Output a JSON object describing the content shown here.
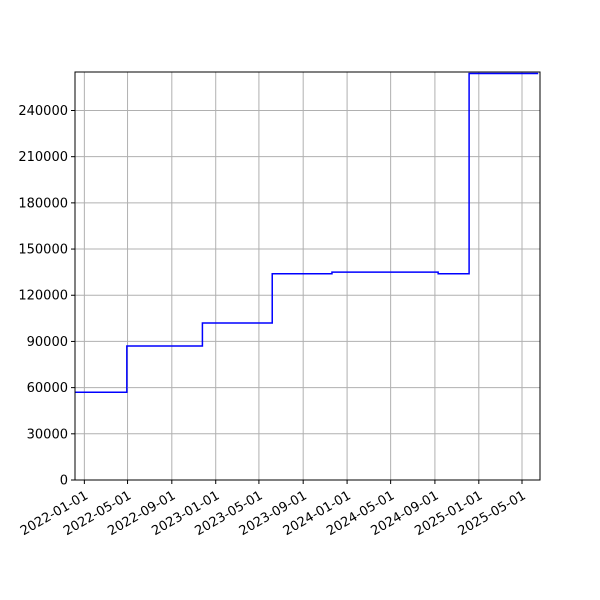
{
  "chart_data": {
    "type": "line",
    "title": "",
    "xlabel": "",
    "ylabel": "",
    "x_axis": "date",
    "xlim": [
      "2021-12-06",
      "2025-06-20"
    ],
    "ylim": [
      0,
      265000
    ],
    "grid": true,
    "legend": "none",
    "line_style": "steps",
    "x_ticks": [
      "2022-01-01",
      "2022-05-01",
      "2022-09-01",
      "2023-01-01",
      "2023-05-01",
      "2023-09-01",
      "2024-01-01",
      "2024-05-01",
      "2024-09-01",
      "2025-01-01",
      "2025-05-01"
    ],
    "y_ticks": [
      0,
      30000,
      60000,
      90000,
      120000,
      150000,
      180000,
      210000,
      240000
    ],
    "y_tick_labels": [
      "0",
      "30000",
      "60000",
      "90000",
      "120000",
      "150000",
      "180000",
      "210000",
      "240000"
    ],
    "series": [
      {
        "color": "#0000ff",
        "x": [
          "2021-12-06",
          "2022-04-29",
          "2022-11-25",
          "2023-06-07",
          "2023-11-20",
          "2024-09-10",
          "2024-12-05",
          "2025-06-15"
        ],
        "y": [
          57000,
          87000,
          102000,
          134000,
          135000,
          134000,
          264000,
          264000
        ]
      }
    ]
  }
}
